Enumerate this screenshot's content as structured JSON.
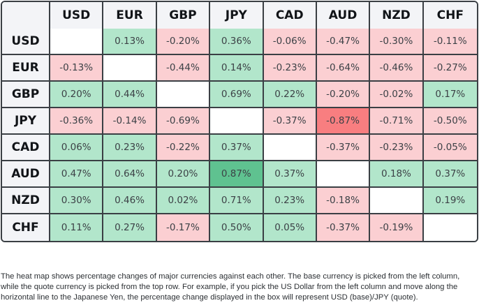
{
  "chart_data": {
    "type": "heatmap",
    "title": "",
    "columns": [
      "USD",
      "EUR",
      "GBP",
      "JPY",
      "CAD",
      "AUD",
      "NZD",
      "CHF"
    ],
    "rows": [
      "USD",
      "EUR",
      "GBP",
      "JPY",
      "CAD",
      "AUD",
      "NZD",
      "CHF"
    ],
    "unit": "%",
    "values": [
      [
        null,
        0.13,
        -0.2,
        0.36,
        -0.06,
        -0.47,
        -0.3,
        -0.11
      ],
      [
        -0.13,
        null,
        -0.44,
        0.14,
        -0.23,
        -0.64,
        -0.46,
        -0.27
      ],
      [
        0.2,
        0.44,
        null,
        0.69,
        0.22,
        -0.2,
        -0.02,
        0.17
      ],
      [
        -0.36,
        -0.14,
        -0.69,
        null,
        -0.37,
        -0.87,
        -0.71,
        -0.5
      ],
      [
        0.06,
        0.23,
        -0.22,
        0.37,
        null,
        -0.37,
        -0.23,
        -0.05
      ],
      [
        0.47,
        0.64,
        0.2,
        0.87,
        0.37,
        null,
        0.18,
        0.37
      ],
      [
        0.3,
        0.46,
        0.02,
        0.71,
        0.23,
        -0.18,
        null,
        0.19
      ],
      [
        0.11,
        0.27,
        -0.17,
        0.5,
        0.05,
        -0.37,
        -0.19,
        null
      ]
    ],
    "labels": [
      [
        "",
        "0.13%",
        "-0.20%",
        "0.36%",
        "-0.06%",
        "-0.47%",
        "-0.30%",
        "-0.11%"
      ],
      [
        "-0.13%",
        "",
        "-0.44%",
        "0.14%",
        "-0.23%",
        "-0.64%",
        "-0.46%",
        "-0.27%"
      ],
      [
        "0.20%",
        "0.44%",
        "",
        "0.69%",
        "0.22%",
        "-0.20%",
        "-0.02%",
        "0.17%"
      ],
      [
        "-0.36%",
        "-0.14%",
        "-0.69%",
        "",
        "-0.37%",
        "-0.87%",
        "-0.71%",
        "-0.50%"
      ],
      [
        "0.06%",
        "0.23%",
        "-0.22%",
        "0.37%",
        "",
        "-0.37%",
        "-0.23%",
        "-0.05%"
      ],
      [
        "0.47%",
        "0.64%",
        "0.20%",
        "0.87%",
        "0.37%",
        "",
        "0.18%",
        "0.37%"
      ],
      [
        "0.30%",
        "0.46%",
        "0.02%",
        "0.71%",
        "0.23%",
        "-0.18%",
        "",
        "0.19%"
      ],
      [
        "0.11%",
        "0.27%",
        "-0.17%",
        "0.50%",
        "0.05%",
        "-0.37%",
        "-0.19%",
        ""
      ]
    ],
    "colors": {
      "positive": "#b2e6cb",
      "negative": "#fbcfd2",
      "max_positive": "#5fc290",
      "max_negative": "#f87e80",
      "diagonal": "#ffffff",
      "header": "#f3f4f7",
      "border": "#3a3f44"
    },
    "highlight": {
      "max_positive": 0.87,
      "max_negative": -0.87
    }
  },
  "footnote": "The heat map shows percentage changes of major currencies against each other. The base currency is picked from the left column, while the quote currency is picked from the top row. For example, if you pick the US Dollar from the left column and move along the horizontal line to the Japanese Yen, the percentage change displayed in the box will represent USD (base)/JPY (quote)."
}
